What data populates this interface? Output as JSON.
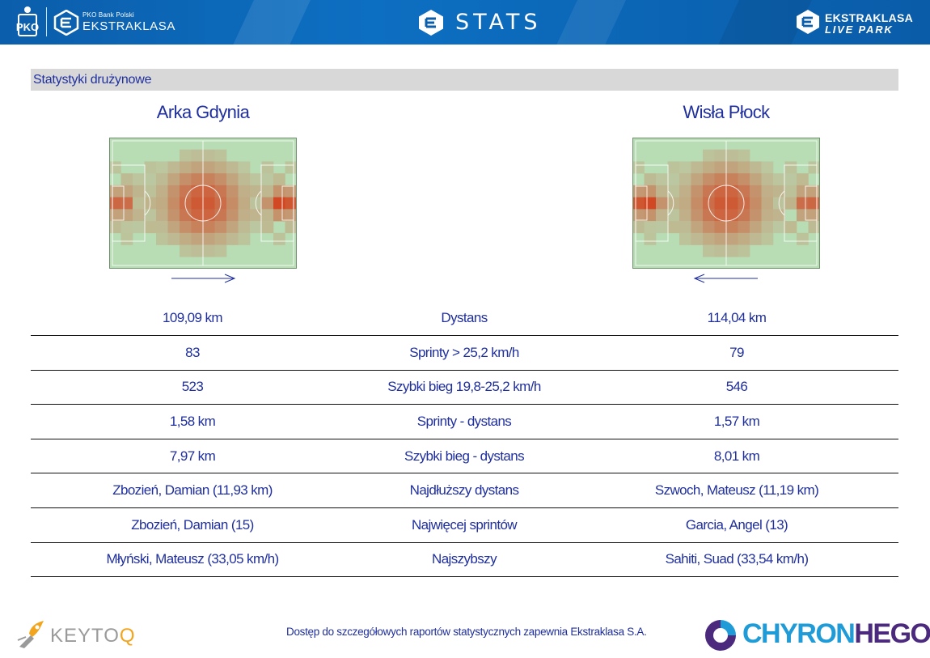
{
  "header": {
    "pko_bank_label": "PKO Bank Polski",
    "league_label": "EKSTRAKLASA",
    "stats_label": "STATS",
    "livepark_line1": "EKSTRAKLASA",
    "livepark_line2": "LIVE PARK",
    "icons": [
      "pko-logo-icon",
      "ekstraklasa-shield-icon",
      "stats-shield-icon",
      "livepark-shield-icon"
    ],
    "colors": {
      "banner": "#0b5eab",
      "text": "#ffffff"
    }
  },
  "section": {
    "title": "Statystyki drużynowe"
  },
  "teams": {
    "home": {
      "name": "Arka Gdynia",
      "attack_direction": "right"
    },
    "away": {
      "name": "Wisła Płock",
      "attack_direction": "left"
    }
  },
  "stats": [
    {
      "home": "109,09 km",
      "label": "Dystans",
      "away": "114,04 km"
    },
    {
      "home": "83",
      "label": "Sprinty > 25,2 km/h",
      "away": "79"
    },
    {
      "home": "523",
      "label": "Szybki bieg 19,8-25,2 km/h",
      "away": "546"
    },
    {
      "home": "1,58 km",
      "label": "Sprinty - dystans",
      "away": "1,57 km"
    },
    {
      "home": "7,97 km",
      "label": "Szybki bieg - dystans",
      "away": "8,01 km"
    },
    {
      "home": "Zbozień, Damian (11,93 km)",
      "label": "Najdłuższy dystans",
      "away": "Szwoch, Mateusz (11,19 km)"
    },
    {
      "home": "Zbozień, Damian (15)",
      "label": "Najwięcej sprintów",
      "away": "Garcia, Angel (13)"
    },
    {
      "home": "Młyński, Mateusz (33,05 km/h)",
      "label": "Najszybszy",
      "away": "Sahiti, Suad (33,54 km/h)"
    }
  ],
  "footer": {
    "keytoq_label": "KEYTO",
    "keytoq_q": "Q",
    "note": "Dostęp do szczegółowych raportów statystycznych zapewnia Ekstraklasa S.A.",
    "chyron_part1": "CHYRON",
    "chyron_part2": "HEGO",
    "icons": [
      "keytoq-logo-icon",
      "chyronhego-logo-icon"
    ]
  },
  "colors": {
    "text_blue": "#1f2f9e",
    "heat_low": "#b8dcb4",
    "heat_high": "#d2401c",
    "section_bar": "#d8d8d8"
  }
}
